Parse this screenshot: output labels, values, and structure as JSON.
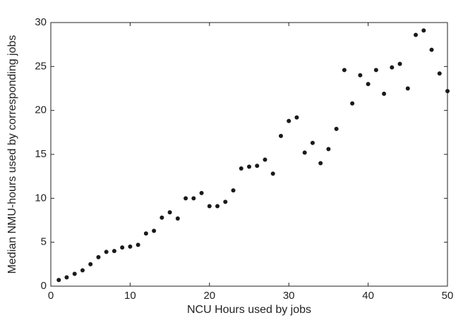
{
  "chart_data": {
    "type": "scatter",
    "xlabel": "NCU Hours used by jobs",
    "ylabel": "Median NMU-hours used by corresponding jobs",
    "color": "#1a1a1a",
    "x": [
      1,
      2,
      3,
      4,
      5,
      6,
      7,
      8,
      9,
      10,
      11,
      12,
      13,
      14,
      15,
      16,
      17,
      18,
      19,
      20,
      21,
      22,
      23,
      24,
      25,
      26,
      27,
      28,
      29,
      30,
      31,
      32,
      33,
      34,
      35,
      36,
      37,
      38,
      39,
      40,
      41,
      42,
      43,
      44,
      45,
      46,
      47,
      48,
      49,
      50
    ],
    "values": [
      0.7,
      1.0,
      1.4,
      1.8,
      2.5,
      3.3,
      3.9,
      4.0,
      4.4,
      4.5,
      4.7,
      6.0,
      6.3,
      7.8,
      8.4,
      7.7,
      10.0,
      10.0,
      10.6,
      9.1,
      9.1,
      9.6,
      10.9,
      13.4,
      13.6,
      13.7,
      14.4,
      12.8,
      17.1,
      18.8,
      19.2,
      15.2,
      16.3,
      14.0,
      15.6,
      17.9,
      24.6,
      20.8,
      24.0,
      23.0,
      24.6,
      21.9,
      24.9,
      25.3,
      22.5,
      28.6,
      29.1,
      26.9,
      24.2,
      22.2
    ],
    "xlim": [
      0,
      50
    ],
    "xticks": [
      0,
      10,
      20,
      30,
      40,
      50
    ],
    "ylim": [
      0,
      30
    ],
    "yticks": [
      0,
      5,
      10,
      15,
      20,
      25,
      30
    ]
  }
}
